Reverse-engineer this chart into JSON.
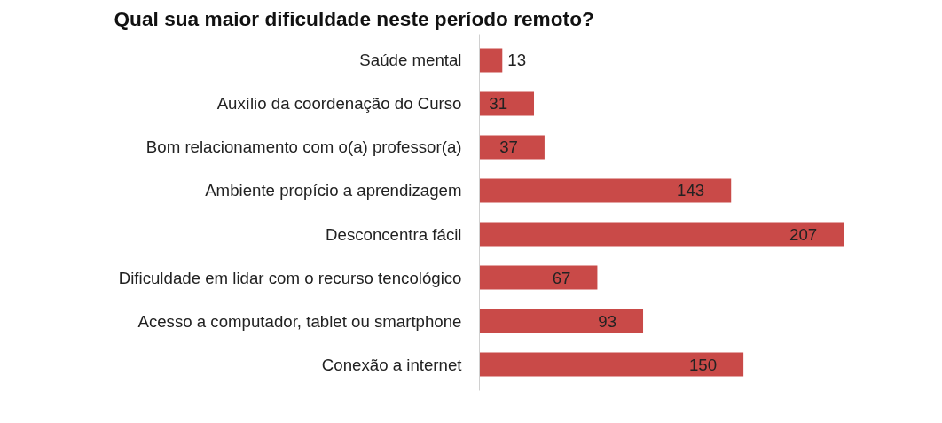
{
  "chart_data": {
    "type": "bar",
    "orientation": "horizontal",
    "title": "Qual sua maior dificuldade neste período remoto?",
    "categories": [
      "Saúde mental",
      "Auxílio da coordenação do Curso",
      "Bom relacionamento com o(a) professor(a)",
      "Ambiente propício a aprendizagem",
      "Desconcentra fácil",
      "Dificuldade em lidar com o recurso tencológico",
      "Acesso a computador, tablet ou smartphone",
      "Conexão a internet"
    ],
    "values": [
      13,
      31,
      37,
      143,
      207,
      67,
      93,
      150
    ],
    "color": "#c94a48",
    "data_labels": true
  }
}
